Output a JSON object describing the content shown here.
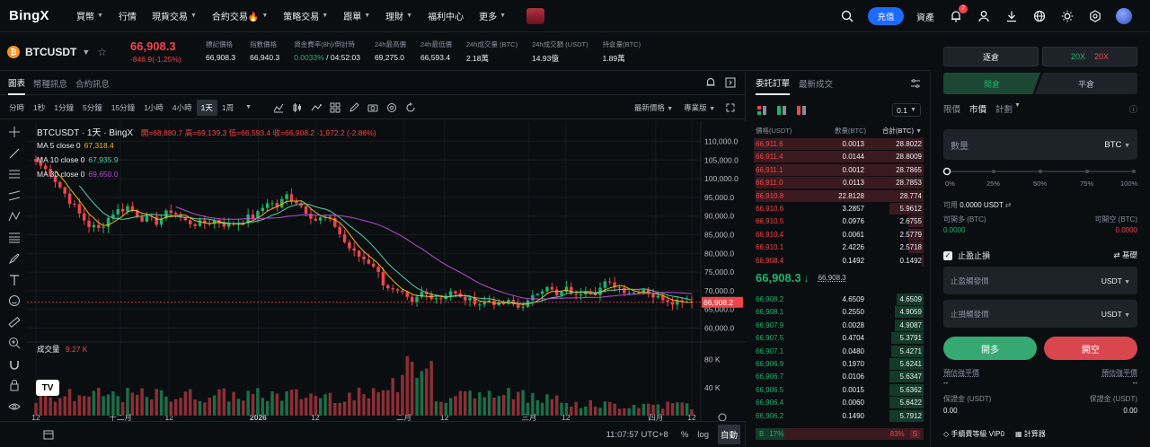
{
  "nav": {
    "logo": "BingX",
    "items": [
      {
        "label": "買幣",
        "caret": true
      },
      {
        "label": "行情",
        "caret": false
      },
      {
        "label": "現貨交易",
        "caret": true
      },
      {
        "label": "合約交易🔥",
        "caret": true
      },
      {
        "label": "策略交易",
        "caret": true
      },
      {
        "label": "跟單",
        "caret": true
      },
      {
        "label": "理財",
        "caret": true
      },
      {
        "label": "福利中心",
        "caret": false
      },
      {
        "label": "更多",
        "caret": true
      }
    ],
    "deposit_label": "充值",
    "assets_label": "資產",
    "notification_count": "7"
  },
  "ticker": {
    "symbol": "BTCUSDT",
    "last_price": "66,908.3",
    "change": "-846.9(-1.25%)",
    "stats": [
      {
        "label": "標記價格",
        "value": "66,908.3",
        "class": ""
      },
      {
        "label": "指數價格",
        "value": "66,940.3",
        "class": ""
      },
      {
        "label": "資金費率(8h)/倒計時",
        "value": "0.0033%",
        "value2": " / 04:52:03",
        "class": "fund"
      },
      {
        "label": "24h最高價",
        "value": "69,275.0",
        "class": ""
      },
      {
        "label": "24h最低價",
        "value": "66,593.4",
        "class": ""
      },
      {
        "label": "24h成交量 (BTC)",
        "value": "2.18萬",
        "class": ""
      },
      {
        "label": "24h成交額 (USDT)",
        "value": "14.93億",
        "class": ""
      },
      {
        "label": "持倉量(BTC)",
        "value": "1.89萬",
        "class": ""
      }
    ]
  },
  "chart_tabs": [
    "圖表",
    "幣種訊息",
    "合約訊息"
  ],
  "timeframes": [
    "分時",
    "1秒",
    "1分鐘",
    "5分鐘",
    "15分鐘",
    "1小時",
    "4小時",
    "1天",
    "1周"
  ],
  "active_timeframe": "1天",
  "chart_options": {
    "latest_price": "最新價格",
    "pro": "專業版"
  },
  "chart_title": {
    "name": "BTCUSDT · 1天 · BingX",
    "ohlc": "開=68,880.7 高=69,139.3 低=66,593.4 收=66,908.2 -1,972.2 (-2.86%)"
  },
  "ma": [
    {
      "label": "MA 5 close 0",
      "value": "67,318.4",
      "color": "#f0b90b"
    },
    {
      "label": "MA 10 close 0",
      "value": "67,935.9",
      "color": "#4fd1a5"
    },
    {
      "label": "MA 30 close 0",
      "value": "69,650.0",
      "color": "#b44fd1"
    }
  ],
  "volume_label": {
    "label": "成交量",
    "value": "9.27 K"
  },
  "chart_data": {
    "type": "candlestick",
    "ylim": [
      57000,
      113000
    ],
    "y_ticks": [
      "110,000.0",
      "105,000.0",
      "100,000.0",
      "95,000.0",
      "90,000.0",
      "85,000.0",
      "80,000.0",
      "75,000.0",
      "70,000.0",
      "65,000.0",
      "60,000.0"
    ],
    "y_tick_values": [
      110000,
      105000,
      100000,
      95000,
      90000,
      85000,
      80000,
      75000,
      70000,
      65000,
      60000
    ],
    "last_price_label": "66,908.2",
    "last_price": 66908.2,
    "x_ticks": [
      "12",
      "十二月",
      "12",
      "2026",
      "12",
      "二月",
      "12",
      "三月",
      "12",
      "四月",
      "12"
    ],
    "x_tick_positions": [
      0.0,
      0.129,
      0.203,
      0.339,
      0.426,
      0.561,
      0.623,
      0.752,
      0.808,
      0.945,
      1.0
    ],
    "volume_ticks": [
      "80 K",
      "40 K"
    ],
    "volume_tick_values": [
      80000,
      40000
    ],
    "volume_max": 100000,
    "close_anchors": [
      [
        0,
        104500
      ],
      [
        3,
        101500
      ],
      [
        6,
        96000
      ],
      [
        9,
        90500
      ],
      [
        11,
        87500
      ],
      [
        13,
        86500
      ],
      [
        16,
        91000
      ],
      [
        19,
        92500
      ],
      [
        22,
        89500
      ],
      [
        25,
        88500
      ],
      [
        28,
        91500
      ],
      [
        31,
        88500
      ],
      [
        34,
        87800
      ],
      [
        37,
        88800
      ],
      [
        40,
        87500
      ],
      [
        43,
        89000
      ],
      [
        46,
        90500
      ],
      [
        48,
        94000
      ],
      [
        50,
        92500
      ],
      [
        52,
        95500
      ],
      [
        54,
        94000
      ],
      [
        56,
        91500
      ],
      [
        58,
        89000
      ],
      [
        60,
        89500
      ],
      [
        62,
        87500
      ],
      [
        64,
        83000
      ],
      [
        66,
        80000
      ],
      [
        68,
        78500
      ],
      [
        70,
        77000
      ],
      [
        72,
        72000
      ],
      [
        74,
        70000
      ],
      [
        76,
        69000
      ],
      [
        78,
        66500
      ],
      [
        80,
        69500
      ],
      [
        82,
        68500
      ],
      [
        84,
        68000
      ],
      [
        86,
        70000
      ],
      [
        88,
        68000
      ],
      [
        90,
        67500
      ],
      [
        92,
        66500
      ],
      [
        94,
        67500
      ],
      [
        96,
        66000
      ],
      [
        98,
        67000
      ],
      [
        100,
        65500
      ],
      [
        102,
        67000
      ],
      [
        104,
        69500
      ],
      [
        106,
        71500
      ],
      [
        108,
        68500
      ],
      [
        110,
        70500
      ],
      [
        112,
        68500
      ],
      [
        114,
        70500
      ],
      [
        116,
        69500
      ],
      [
        118,
        72000
      ],
      [
        120,
        71500
      ],
      [
        122,
        70000
      ],
      [
        124,
        69500
      ],
      [
        126,
        70500
      ],
      [
        128,
        68500
      ],
      [
        130,
        68000
      ],
      [
        132,
        67000
      ],
      [
        134,
        67500
      ],
      [
        136,
        66900
      ]
    ]
  },
  "orderbook": {
    "tabs": [
      "委託訂單",
      "最新成交"
    ],
    "precision": "0.1",
    "headers": {
      "price": "價格(USDT)",
      "amount": "數量(BTC)",
      "total": "合計(BTC)"
    },
    "asks": [
      {
        "price": "66,911.6",
        "amount": "0.0013",
        "total": "28.8022",
        "depth": 1.0
      },
      {
        "price": "66,911.4",
        "amount": "0.0144",
        "total": "28.8009",
        "depth": 1.0
      },
      {
        "price": "66,911.1",
        "amount": "0.0012",
        "total": "28.7865",
        "depth": 0.99
      },
      {
        "price": "66,911.0",
        "amount": "0.0113",
        "total": "28.7853",
        "depth": 0.99
      },
      {
        "price": "66,910.8",
        "amount": "22.8128",
        "total": "28.774",
        "depth": 0.99
      },
      {
        "price": "66,910.6",
        "amount": "3.2857",
        "total": "5.9612",
        "depth": 0.2
      },
      {
        "price": "66,910.5",
        "amount": "0.0976",
        "total": "2.6755",
        "depth": 0.09
      },
      {
        "price": "66,910.4",
        "amount": "0.0061",
        "total": "2.5779",
        "depth": 0.09
      },
      {
        "price": "66,910.1",
        "amount": "2.4226",
        "total": "2.5718",
        "depth": 0.09
      },
      {
        "price": "66,908.4",
        "amount": "0.1492",
        "total": "0.1492",
        "depth": 0.01
      }
    ],
    "mid_price": "66,908.3",
    "mid_arrow": "↓",
    "mark_price": "66,908.3",
    "bids": [
      {
        "price": "66,908.2",
        "amount": "4.6509",
        "total": "4.6509",
        "depth": 0.16
      },
      {
        "price": "66,908.1",
        "amount": "0.2550",
        "total": "4.9059",
        "depth": 0.17
      },
      {
        "price": "66,907.9",
        "amount": "0.0028",
        "total": "4.9087",
        "depth": 0.17
      },
      {
        "price": "66,907.5",
        "amount": "0.4704",
        "total": "5.3791",
        "depth": 0.19
      },
      {
        "price": "66,907.1",
        "amount": "0.0480",
        "total": "5.4271",
        "depth": 0.19
      },
      {
        "price": "66,906.9",
        "amount": "0.1970",
        "total": "5.6241",
        "depth": 0.2
      },
      {
        "price": "66,906.7",
        "amount": "0.0106",
        "total": "5.6347",
        "depth": 0.2
      },
      {
        "price": "66,906.5",
        "amount": "0.0015",
        "total": "5.6362",
        "depth": 0.2
      },
      {
        "price": "66,906.4",
        "amount": "0.0060",
        "total": "5.6422",
        "depth": 0.2
      },
      {
        "price": "66,906.2",
        "amount": "0.1490",
        "total": "5.7912",
        "depth": 0.2
      }
    ],
    "buy_label": "B",
    "buy_ratio": "17%",
    "buy_ratio_value": 0.17,
    "sell_ratio": "83%",
    "sell_label": "S"
  },
  "bottombar": {
    "time": "11:07:57 UTC+8",
    "pct": "%",
    "log": "log",
    "auto": "自動"
  },
  "trade": {
    "margin_mode": "逐倉",
    "leverage_long": "20X",
    "leverage_short": "20X",
    "open_tab": "開倉",
    "close_tab": "平倉",
    "order_types": [
      "限價",
      "市價",
      "計劃"
    ],
    "active_order_type": "市價",
    "qty_placeholder": "數量",
    "qty_unit": "BTC",
    "slider_marks": [
      "0%",
      "25%",
      "50%",
      "75%",
      "100%"
    ],
    "slider_value": 0.0,
    "available_label": "可用",
    "available_value": "0.0000 USDT",
    "can_long_label": "可開多 (BTC)",
    "can_long_value": "0.0000",
    "can_short_label": "可開空 (BTC)",
    "can_short_value": "0.0000",
    "tpsl_label": "止盈止損",
    "basic_label": "基礎",
    "tp_placeholder": "止盈觸發價",
    "sl_placeholder": "止損觸發價",
    "trigger_unit": "USDT",
    "long_button": "開多",
    "short_button": "開空",
    "est_liq_long_label": "預估強平價",
    "est_liq_long_value": "--",
    "est_liq_short_label": "預估強平價",
    "est_liq_short_value": "--",
    "margin_long_label": "保證金 (USDT)",
    "margin_long_value": "0.00",
    "margin_short_label": "保證金 (USDT)",
    "margin_short_value": "0.00",
    "fee_label": "手續費等級 VIP0",
    "calc_label": "計算器"
  },
  "colors": {
    "up": "#20b26c",
    "down": "#ef454a",
    "accent": "#1a6bff",
    "ma5": "#f0b90b",
    "ma10": "#4fd1a5",
    "ma30": "#b44fd1"
  }
}
